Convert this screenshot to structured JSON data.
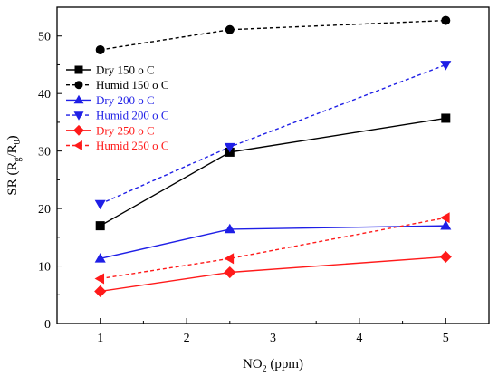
{
  "chart_data": {
    "type": "line",
    "title": "",
    "xlabel": {
      "main": "NO",
      "sub": "2",
      "rest": " (ppm)"
    },
    "ylabel": {
      "main": "SR (R",
      "sub1": "g",
      "mid": "/R",
      "sub2": "0",
      "end": ")"
    },
    "xlim": [
      0.5,
      5.5
    ],
    "ylim": [
      0,
      55
    ],
    "xticks": [
      1,
      2,
      3,
      4,
      5
    ],
    "yticks": [
      0,
      10,
      20,
      30,
      40,
      50
    ],
    "grid": false,
    "legend_position": "upper-left",
    "x": [
      1,
      2.5,
      5
    ],
    "series": [
      {
        "name": "Dry 150 o C",
        "values": [
          17.0,
          29.8,
          35.7
        ],
        "color": "#000000",
        "dash": "solid",
        "marker": "square",
        "label_color": "#000000"
      },
      {
        "name": "Humid 150 o C",
        "values": [
          47.6,
          51.1,
          52.7
        ],
        "color": "#000000",
        "dash": "dash",
        "marker": "circle",
        "label_color": "#000000"
      },
      {
        "name": "Dry 200 o C",
        "values": [
          11.3,
          16.4,
          17.0
        ],
        "color": "#1f1fe6",
        "dash": "solid",
        "marker": "triangle-up",
        "label_color": "#1f1fe6"
      },
      {
        "name": "Humid 200 o C",
        "values": [
          20.8,
          30.7,
          45.0
        ],
        "color": "#1f1fe6",
        "dash": "dash",
        "marker": "triangle-down",
        "label_color": "#1f1fe6"
      },
      {
        "name": "Dry 250 o C",
        "values": [
          5.6,
          8.9,
          11.6
        ],
        "color": "#ff1a1a",
        "dash": "solid",
        "marker": "diamond",
        "label_color": "#ff1a1a"
      },
      {
        "name": "Humid 250 o C",
        "values": [
          7.8,
          11.3,
          18.4
        ],
        "color": "#ff1a1a",
        "dash": "dash",
        "marker": "triangle-left",
        "label_color": "#ff1a1a"
      }
    ]
  }
}
